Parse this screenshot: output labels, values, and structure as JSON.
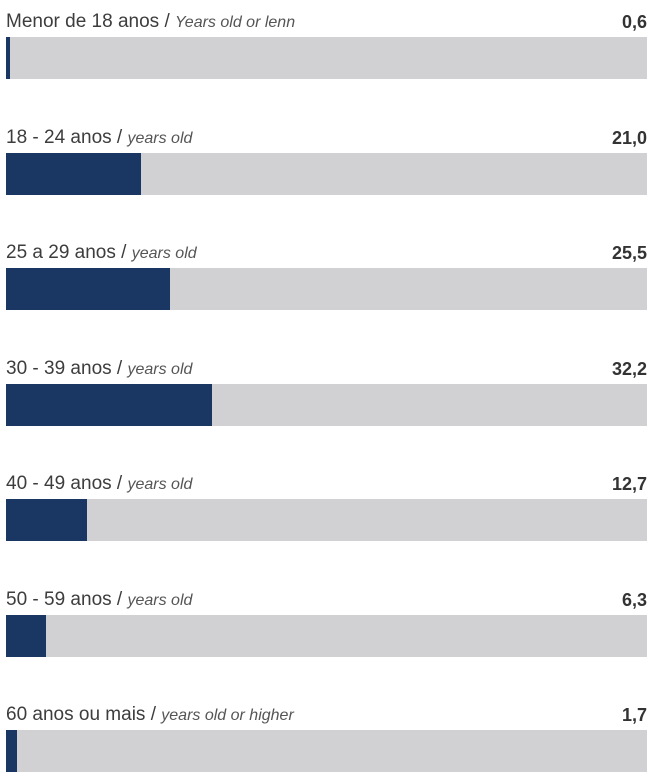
{
  "chart_data": {
    "type": "bar",
    "orientation": "horizontal",
    "bar_color": "#1a3764",
    "track_color": "#d1d0d2",
    "xlim": [
      0,
      100
    ],
    "items": [
      {
        "label_pt": "Menor de 18 anos",
        "label_en": "Years old or lenn",
        "value": 0.6,
        "value_label": "0,6"
      },
      {
        "label_pt": "18 - 24 anos",
        "label_en": "years old",
        "value": 21.0,
        "value_label": "21,0"
      },
      {
        "label_pt": "25 a 29 anos",
        "label_en": "years old",
        "value": 25.5,
        "value_label": "25,5"
      },
      {
        "label_pt": "30 - 39 anos",
        "label_en": "years old",
        "value": 32.2,
        "value_label": "32,2"
      },
      {
        "label_pt": "40 - 49 anos",
        "label_en": "years old",
        "value": 12.7,
        "value_label": "12,7"
      },
      {
        "label_pt": "50 - 59 anos",
        "label_en": "years old",
        "value": 6.3,
        "value_label": "6,3"
      },
      {
        "label_pt": "60 anos ou mais",
        "label_en": "years old or higher",
        "value": 1.7,
        "value_label": "1,7"
      }
    ]
  }
}
